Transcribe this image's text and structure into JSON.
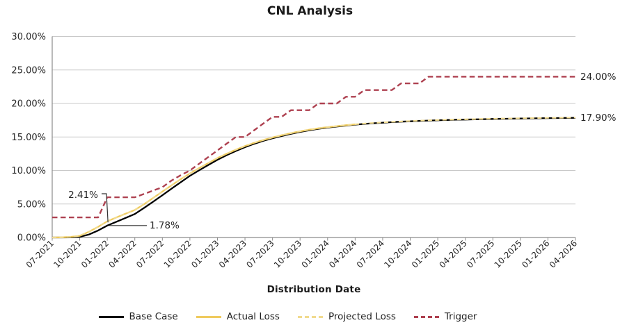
{
  "title": "CNL Analysis",
  "x_axis_title": "Distribution Date",
  "colors": {
    "grid": "#C9C9C9",
    "axis": "#8C8C8C",
    "text": "#262626",
    "annotation_line": "#333333",
    "base_case": "#000000",
    "actual_loss": "#EFCB5F",
    "projected_loss": "#F1DB8F",
    "trigger": "#AE4150"
  },
  "legend": {
    "items": [
      "Base Case",
      "Actual Loss",
      "Projected Loss",
      "Trigger"
    ]
  },
  "chart_data": {
    "type": "line",
    "title": "CNL Analysis",
    "xlabel": "Distribution Date",
    "ylabel": "",
    "ylim": [
      0,
      30
    ],
    "y_tick_step": 5,
    "y_ticks": [
      "0.00%",
      "5.00%",
      "10.00%",
      "15.00%",
      "20.00%",
      "25.00%",
      "30.00%"
    ],
    "grid": "horizontal",
    "legend_position": "bottom",
    "categories": [
      "07-2021",
      "10-2021",
      "01-2022",
      "04-2022",
      "07-2022",
      "10-2022",
      "01-2023",
      "04-2023",
      "07-2023",
      "10-2023",
      "01-2024",
      "04-2024",
      "07-2024",
      "10-2024",
      "01-2025",
      "04-2025",
      "07-2025",
      "10-2025",
      "01-2026",
      "04-2026"
    ],
    "months_per_category": 3,
    "x_month_count": 58,
    "series": [
      {
        "name": "Base Case",
        "style": "solid",
        "color": "#000000",
        "width": 2.3,
        "values": [
          0.0,
          0.0,
          0.02,
          0.1,
          0.45,
          1.05,
          1.78,
          2.35,
          2.92,
          3.5,
          4.4,
          5.35,
          6.3,
          7.28,
          8.25,
          9.2,
          10.02,
          10.82,
          11.6,
          12.28,
          12.9,
          13.48,
          13.98,
          14.42,
          14.8,
          15.14,
          15.46,
          15.75,
          16.0,
          16.22,
          16.4,
          16.56,
          16.7,
          16.84,
          16.95,
          17.05,
          17.13,
          17.21,
          17.28,
          17.34,
          17.4,
          17.45,
          17.49,
          17.53,
          17.57,
          17.6,
          17.63,
          17.66,
          17.69,
          17.71,
          17.73,
          17.75,
          17.77,
          17.79,
          17.81,
          17.82,
          17.84,
          17.85
        ]
      },
      {
        "name": "Actual Loss",
        "style": "solid",
        "color": "#EFCB5F",
        "width": 2.3,
        "values": [
          0.0,
          0.02,
          0.08,
          0.25,
          0.85,
          1.6,
          2.41,
          3.0,
          3.55,
          4.1,
          4.95,
          5.9,
          6.85,
          7.78,
          8.7,
          9.55,
          10.35,
          11.1,
          11.85,
          12.5,
          13.1,
          13.65,
          14.12,
          14.55,
          14.92,
          15.25,
          15.56,
          15.84,
          16.08,
          16.3,
          16.47,
          16.62,
          16.76,
          16.89
        ]
      },
      {
        "name": "Projected Loss",
        "style": "dashed",
        "color": "#F1DB8F",
        "width": 2.1,
        "values": [
          0.0,
          0.02,
          0.08,
          0.25,
          0.85,
          1.6,
          2.41,
          3.0,
          3.55,
          4.1,
          4.95,
          5.9,
          6.85,
          7.78,
          8.7,
          9.55,
          10.35,
          11.1,
          11.85,
          12.5,
          13.1,
          13.65,
          14.12,
          14.55,
          14.92,
          15.25,
          15.56,
          15.84,
          16.08,
          16.3,
          16.47,
          16.62,
          16.76,
          16.89,
          17.0,
          17.09,
          17.17,
          17.25,
          17.32,
          17.38,
          17.44,
          17.49,
          17.53,
          17.57,
          17.61,
          17.64,
          17.67,
          17.7,
          17.73,
          17.75,
          17.77,
          17.79,
          17.81,
          17.83,
          17.85,
          17.86,
          17.88,
          17.9
        ]
      },
      {
        "name": "Trigger",
        "style": "dashed",
        "color": "#AE4150",
        "width": 2.4,
        "values": [
          3,
          3,
          3,
          3,
          3,
          3,
          6,
          6,
          6,
          6,
          6.5,
          7,
          7.5,
          8.5,
          9.3,
          10,
          11,
          12,
          13,
          14,
          15,
          15,
          16,
          17,
          18,
          18,
          19,
          19,
          19,
          20,
          20,
          20,
          21,
          21,
          22,
          22,
          22,
          22,
          23,
          23,
          23,
          24,
          24,
          24,
          24,
          24,
          24,
          24,
          24,
          24,
          24,
          24,
          24,
          24,
          24,
          24,
          24,
          24
        ]
      }
    ],
    "annotations": [
      {
        "text": "2.41%",
        "type": "leader-bent",
        "month_index": 6,
        "value": 2.41,
        "label_x": 141,
        "label_y": 285
      },
      {
        "text": "1.78%",
        "type": "leader-horizontal",
        "month_index": 6,
        "value": 1.78,
        "label_x": 215,
        "label_y": 329
      },
      {
        "text": "24.00%",
        "type": "end-label",
        "value": 24.0
      },
      {
        "text": "17.90%",
        "type": "end-label",
        "value": 17.9
      }
    ]
  }
}
